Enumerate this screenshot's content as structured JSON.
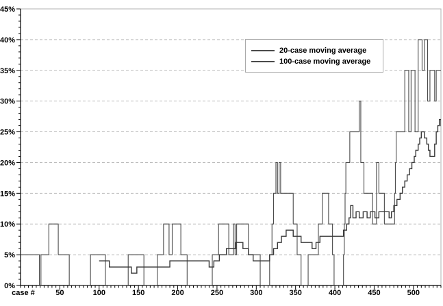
{
  "chart_data": {
    "type": "line",
    "title": "",
    "xlabel": "case #",
    "ylabel": "",
    "xlim": [
      0,
      535
    ],
    "ylim": [
      0,
      45
    ],
    "x_major_ticks": [
      50,
      100,
      150,
      200,
      250,
      300,
      350,
      400,
      450,
      500
    ],
    "x_minor_tick_step": 5,
    "y_major_tick_step": 5,
    "y_minor_tick_step": 1,
    "y_tick_labels": [
      "0%",
      "5%",
      "10%",
      "15%",
      "20%",
      "25%",
      "30%",
      "35%",
      "40%",
      "45%"
    ],
    "grid": "dashed horizontal gridlines at every 5%",
    "legend_position": "top-center-right",
    "colors": {
      "series20": "#4a4a4a",
      "series100": "#383838",
      "gridline": "#bbbbbb",
      "frame": "#b0b0b0",
      "axis": "#000000"
    },
    "series": [
      {
        "name": "20-case moving average",
        "step_mode": "step-after",
        "points": [
          [
            0,
            5
          ],
          [
            24,
            0
          ],
          [
            26,
            5
          ],
          [
            36,
            10
          ],
          [
            48,
            5
          ],
          [
            62,
            0
          ],
          [
            89,
            5
          ],
          [
            108,
            0
          ],
          [
            137,
            5
          ],
          [
            157,
            0
          ],
          [
            174,
            5
          ],
          [
            182,
            10
          ],
          [
            189,
            5
          ],
          [
            193,
            10
          ],
          [
            204,
            5
          ],
          [
            212,
            0
          ],
          [
            244,
            5
          ],
          [
            252,
            10
          ],
          [
            265,
            5
          ],
          [
            271,
            10
          ],
          [
            273,
            5
          ],
          [
            275,
            10
          ],
          [
            290,
            5
          ],
          [
            305,
            0
          ],
          [
            317,
            5
          ],
          [
            320,
            10
          ],
          [
            322,
            15
          ],
          [
            325,
            20
          ],
          [
            327,
            15
          ],
          [
            329,
            20
          ],
          [
            331,
            15
          ],
          [
            347,
            10
          ],
          [
            352,
            5
          ],
          [
            357,
            0
          ],
          [
            366,
            5
          ],
          [
            379,
            10
          ],
          [
            384,
            15
          ],
          [
            392,
            10
          ],
          [
            397,
            5
          ],
          [
            399,
            0
          ],
          [
            411,
            5
          ],
          [
            412,
            10
          ],
          [
            413,
            15
          ],
          [
            414,
            20
          ],
          [
            419,
            25
          ],
          [
            431,
            30
          ],
          [
            433,
            20
          ],
          [
            437,
            15
          ],
          [
            448,
            10
          ],
          [
            453,
            20
          ],
          [
            456,
            15
          ],
          [
            463,
            10
          ],
          [
            476,
            15
          ],
          [
            477,
            20
          ],
          [
            478,
            25
          ],
          [
            489,
            35
          ],
          [
            494,
            25
          ],
          [
            497,
            35
          ],
          [
            502,
            25
          ],
          [
            506,
            40
          ],
          [
            511,
            35
          ],
          [
            514,
            40
          ],
          [
            518,
            30
          ],
          [
            521,
            35
          ],
          [
            527,
            30
          ],
          [
            529,
            35
          ],
          [
            540,
            35
          ]
        ]
      },
      {
        "name": "100-case moving average",
        "step_mode": "step-after",
        "points": [
          [
            100,
            4
          ],
          [
            113,
            3
          ],
          [
            141,
            2
          ],
          [
            148,
            3
          ],
          [
            190,
            4
          ],
          [
            240,
            3
          ],
          [
            246,
            4
          ],
          [
            253,
            5
          ],
          [
            262,
            6
          ],
          [
            274,
            7
          ],
          [
            283,
            6
          ],
          [
            290,
            5
          ],
          [
            296,
            4
          ],
          [
            317,
            5
          ],
          [
            322,
            6
          ],
          [
            327,
            7
          ],
          [
            332,
            8
          ],
          [
            338,
            9
          ],
          [
            347,
            8
          ],
          [
            357,
            7
          ],
          [
            371,
            6
          ],
          [
            376,
            7
          ],
          [
            381,
            8
          ],
          [
            411,
            9
          ],
          [
            415,
            10
          ],
          [
            418,
            11
          ],
          [
            420,
            13
          ],
          [
            423,
            11
          ],
          [
            427,
            12
          ],
          [
            431,
            11
          ],
          [
            436,
            12
          ],
          [
            441,
            11
          ],
          [
            445,
            12
          ],
          [
            451,
            11
          ],
          [
            456,
            12
          ],
          [
            469,
            11
          ],
          [
            472,
            12
          ],
          [
            475,
            13
          ],
          [
            479,
            14
          ],
          [
            483,
            15
          ],
          [
            486,
            16
          ],
          [
            489,
            17
          ],
          [
            492,
            18
          ],
          [
            495,
            19
          ],
          [
            498,
            20
          ],
          [
            501,
            21
          ],
          [
            503,
            22
          ],
          [
            506,
            23
          ],
          [
            508,
            24
          ],
          [
            510,
            25
          ],
          [
            514,
            24
          ],
          [
            517,
            23
          ],
          [
            519,
            22
          ],
          [
            521,
            21
          ],
          [
            526,
            21
          ],
          [
            527,
            23
          ],
          [
            529,
            25
          ],
          [
            531,
            26
          ],
          [
            533,
            27
          ],
          [
            535,
            26
          ],
          [
            540,
            26
          ]
        ]
      }
    ]
  },
  "labels": {
    "x_axis_title": "case #"
  }
}
